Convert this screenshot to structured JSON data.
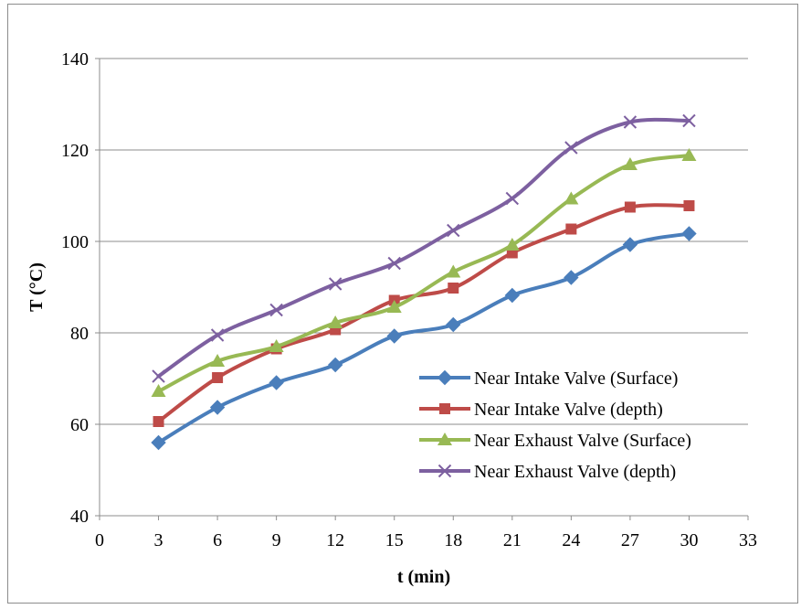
{
  "chart_data": {
    "type": "line",
    "title": "",
    "xlabel": "t (min)",
    "ylabel": "T (°C)",
    "xlim": [
      0,
      33
    ],
    "ylim": [
      40,
      140
    ],
    "xticks": [
      0,
      3,
      6,
      9,
      12,
      15,
      18,
      21,
      24,
      27,
      30,
      33
    ],
    "yticks": [
      40,
      60,
      80,
      100,
      120,
      140
    ],
    "grid": "horizontal",
    "legend_position": "right-inside",
    "x": [
      3,
      6,
      9,
      12,
      15,
      18,
      21,
      24,
      27,
      30
    ],
    "series": [
      {
        "name": "Near Intake Valve (Surface)",
        "color": "#4a7ebb",
        "marker": "diamond",
        "values": [
          56,
          63.7,
          69.1,
          73,
          79.3,
          81.8,
          88.2,
          92.1,
          99.3,
          101.7
        ]
      },
      {
        "name": "Near Intake Valve (depth)",
        "color": "#be4b48",
        "marker": "square",
        "values": [
          60.6,
          70.2,
          76.5,
          80.7,
          87.1,
          89.8,
          97.5,
          102.7,
          107.5,
          107.8
        ]
      },
      {
        "name": "Near Exhaust Valve (Surface)",
        "color": "#98b954",
        "marker": "triangle",
        "values": [
          67.2,
          73.8,
          77,
          82.2,
          85.6,
          93.3,
          99.2,
          109.3,
          116.8,
          118.8
        ]
      },
      {
        "name": "Near Exhaust Valve (depth)",
        "color": "#7d60a0",
        "marker": "x",
        "values": [
          70.5,
          79.5,
          85,
          90.7,
          95.2,
          102.4,
          109.4,
          120.5,
          126.1,
          126.4
        ]
      }
    ]
  }
}
